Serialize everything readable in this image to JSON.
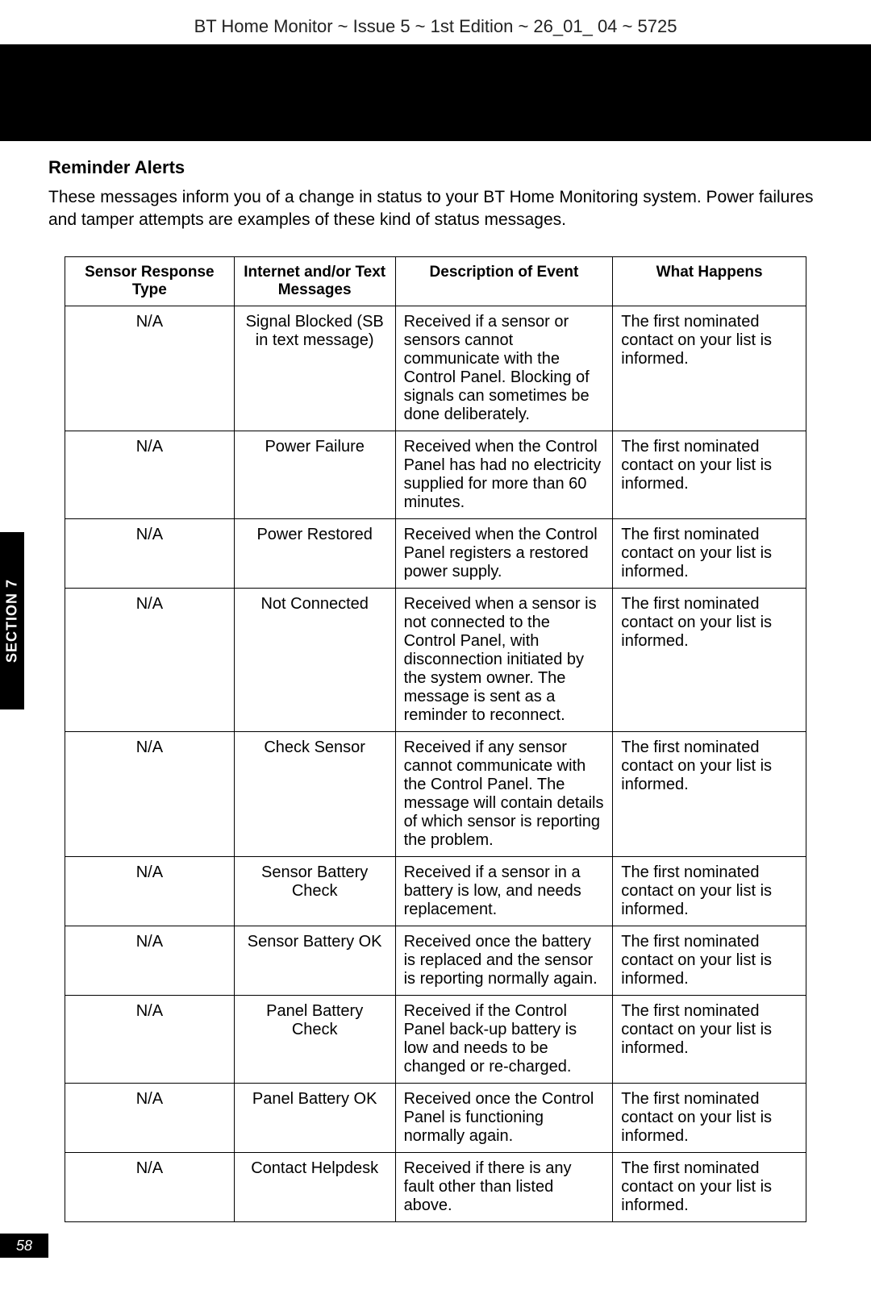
{
  "header": "BT Home Monitor ~ Issue 5 ~ 1st Edition ~ 26_01_ 04 ~ 5725",
  "sideTab": "SECTION 7",
  "pageNumber": "58",
  "sectionTitle": "Reminder Alerts",
  "intro": "These messages inform you of a change in status to your BT Home Monitoring system. Power failures and tamper attempts are examples of these kind of status messages.",
  "table": {
    "columns": [
      "Sensor Response Type",
      "Internet and/or Text Messages",
      "Description of Event",
      "What Happens"
    ],
    "rows": [
      [
        "N/A",
        "Signal Blocked (SB in text message)",
        "Received if a sensor or sensors cannot communicate with the Control Panel. Blocking of signals can sometimes be done deliberately.",
        "The first nominated contact on your list is informed."
      ],
      [
        "N/A",
        "Power Failure",
        "Received when the Control Panel has had no electricity supplied for more than 60 minutes.",
        "The first nominated contact on your list is informed."
      ],
      [
        "N/A",
        "Power Restored",
        "Received when the Control Panel registers a restored power supply.",
        "The first nominated contact on your list is informed."
      ],
      [
        "N/A",
        "Not Connected",
        "Received when a sensor is not connected to the Control Panel, with disconnection initiated by the system owner. The message is sent as a reminder to reconnect.",
        "The first nominated contact on your list is informed."
      ],
      [
        "N/A",
        "Check Sensor",
        "Received if any sensor cannot communicate with the Control Panel. The message will contain details of which sensor is reporting the problem.",
        "The first nominated contact on your list is informed."
      ],
      [
        "N/A",
        "Sensor Battery Check",
        "Received if a sensor in a battery is low, and needs replacement.",
        "The first nominated contact on your list is informed."
      ],
      [
        "N/A",
        "Sensor Battery OK",
        "Received once the battery is replaced and the sensor is reporting normally again.",
        "The first nominated contact on your list is informed."
      ],
      [
        "N/A",
        "Panel Battery Check",
        "Received if the Control Panel back-up battery is low and needs to be changed or re-charged.",
        "The first nominated contact on your list is informed."
      ],
      [
        "N/A",
        "Panel Battery OK",
        "Received once the Control Panel is functioning normally again.",
        "The first nominated contact on your list is informed."
      ],
      [
        "N/A",
        "Contact Helpdesk",
        "Received if there is any fault other than listed above.",
        "The first nominated contact on your list is informed."
      ]
    ]
  },
  "style": {
    "background_color": "#ffffff",
    "text_color": "#000000",
    "bar_color": "#000000",
    "border_color": "#000000",
    "body_fontsize": 21,
    "table_fontsize": 20,
    "header_fontsize": 22
  }
}
